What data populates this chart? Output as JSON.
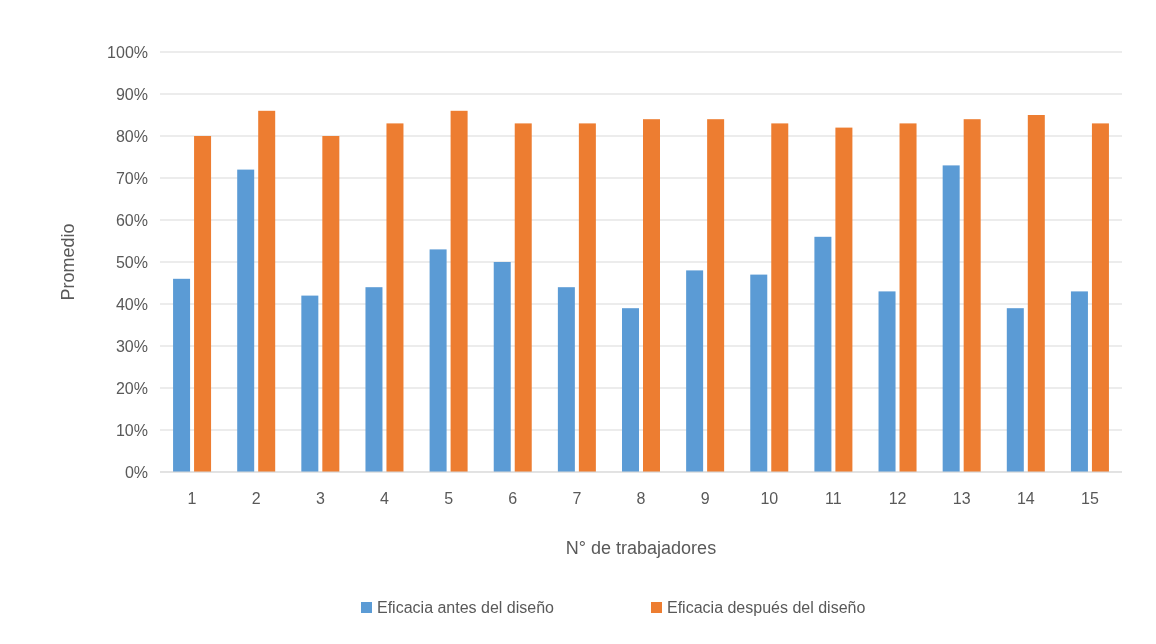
{
  "chart_data": {
    "type": "bar",
    "xlabel": "N° de trabajadores",
    "ylabel": "Promedio",
    "categories": [
      "1",
      "2",
      "3",
      "4",
      "5",
      "6",
      "7",
      "8",
      "9",
      "10",
      "11",
      "12",
      "13",
      "14",
      "15"
    ],
    "series": [
      {
        "name": "Eficacia antes del diseño",
        "color": "#5b9bd5",
        "values": [
          46,
          72,
          42,
          44,
          53,
          50,
          44,
          39,
          48,
          47,
          56,
          43,
          73,
          39,
          43
        ]
      },
      {
        "name": "Eficacia después del diseño",
        "color": "#ed7d31",
        "values": [
          80,
          86,
          80,
          83,
          86,
          83,
          83,
          84,
          84,
          83,
          82,
          83,
          84,
          85,
          83
        ]
      }
    ],
    "ylim": [
      0,
      100
    ],
    "yticks": [
      {
        "value": 0,
        "label": "0%"
      },
      {
        "value": 10,
        "label": "10%"
      },
      {
        "value": 20,
        "label": "20%"
      },
      {
        "value": 30,
        "label": "30%"
      },
      {
        "value": 40,
        "label": "40%"
      },
      {
        "value": 50,
        "label": "50%"
      },
      {
        "value": 60,
        "label": "60%"
      },
      {
        "value": 70,
        "label": "70%"
      },
      {
        "value": 80,
        "label": "80%"
      },
      {
        "value": 90,
        "label": "90%"
      },
      {
        "value": 100,
        "label": "100%"
      }
    ],
    "grid": "y",
    "legend": "bottom"
  }
}
